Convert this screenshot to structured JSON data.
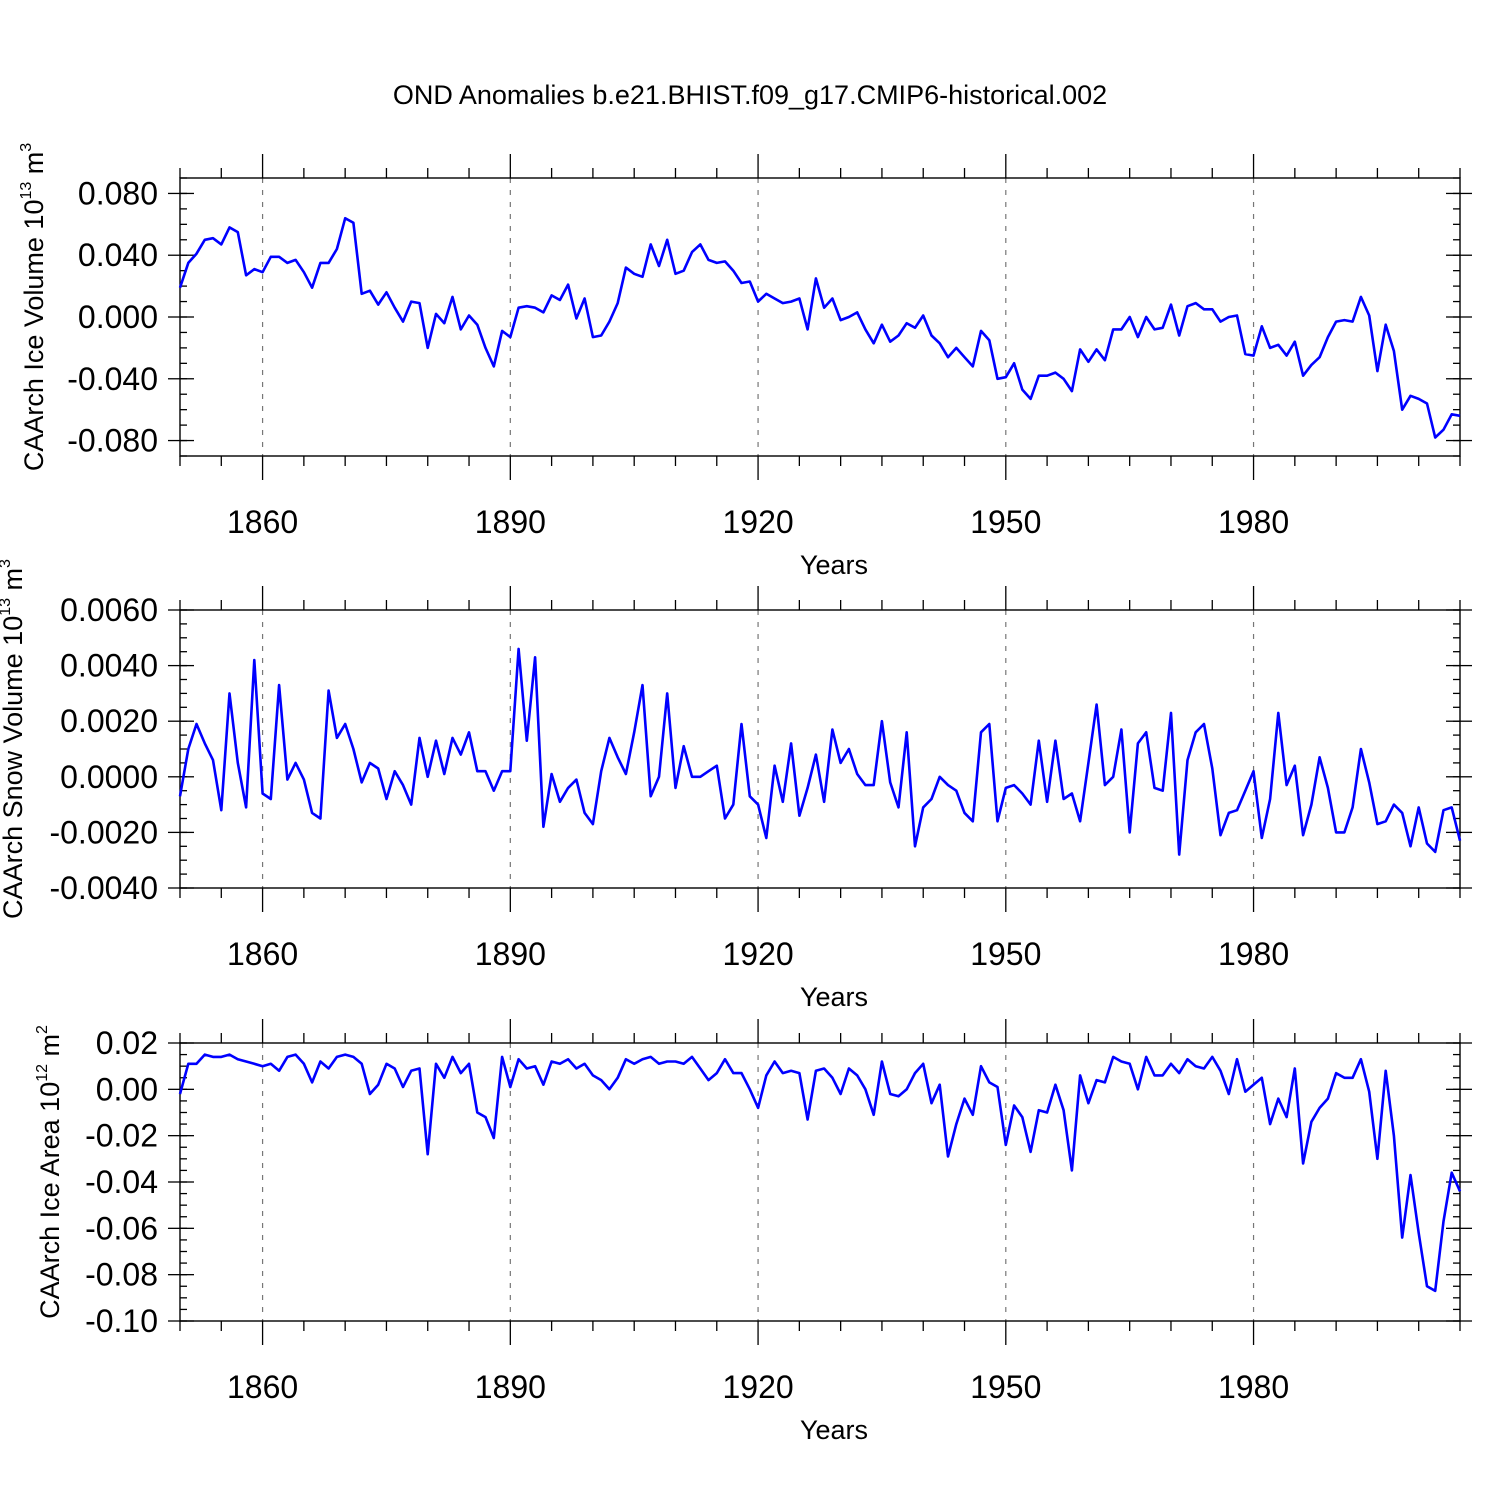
{
  "title": "OND Anomalies b.e21.BHIST.f09_g17.CMIP6-historical.002",
  "chart_data": [
    {
      "type": "line",
      "title": "",
      "xlabel": "Years",
      "ylabel": "CAArch Ice Volume 10",
      "ylabel_exp": "13",
      "ylabel_unit": " m",
      "ylabel_unit_exp": "3",
      "xlim": [
        1850,
        2005
      ],
      "ylim": [
        -0.09,
        0.09
      ],
      "xticks": [
        1860,
        1890,
        1920,
        1950,
        1980
      ],
      "xtick_labels": [
        "1860",
        "1890",
        "1920",
        "1950",
        "1980"
      ],
      "yticks": [
        -0.08,
        -0.04,
        0.0,
        0.04,
        0.08
      ],
      "ytick_labels": [
        "-0.080",
        "-0.040",
        "0.000",
        "0.040",
        "0.080"
      ],
      "grid": "dashed vertical at major x ticks",
      "series": [
        {
          "name": "CAArch Ice Volume",
          "color": "#0000ff",
          "x_start": 1850,
          "values": [
            0.019,
            0.035,
            0.041,
            0.05,
            0.051,
            0.047,
            0.058,
            0.055,
            0.027,
            0.031,
            0.029,
            0.039,
            0.039,
            0.035,
            0.037,
            0.029,
            0.019,
            0.035,
            0.035,
            0.044,
            0.064,
            0.061,
            0.015,
            0.017,
            0.008,
            0.016,
            0.006,
            -0.003,
            0.01,
            0.009,
            -0.02,
            0.002,
            -0.004,
            0.013,
            -0.008,
            0.001,
            -0.005,
            -0.02,
            -0.032,
            -0.009,
            -0.013,
            0.006,
            0.007,
            0.006,
            0.003,
            0.014,
            0.011,
            0.021,
            -0.001,
            0.012,
            -0.013,
            -0.012,
            -0.003,
            0.009,
            0.032,
            0.028,
            0.026,
            0.047,
            0.033,
            0.05,
            0.028,
            0.03,
            0.042,
            0.047,
            0.037,
            0.035,
            0.036,
            0.03,
            0.022,
            0.023,
            0.01,
            0.015,
            0.012,
            0.009,
            0.01,
            0.012,
            -0.008,
            0.025,
            0.006,
            0.012,
            -0.002,
            0.0,
            0.003,
            -0.008,
            -0.017,
            -0.005,
            -0.016,
            -0.012,
            -0.004,
            -0.007,
            0.001,
            -0.012,
            -0.017,
            -0.026,
            -0.02,
            -0.026,
            -0.032,
            -0.009,
            -0.015,
            -0.04,
            -0.039,
            -0.03,
            -0.047,
            -0.053,
            -0.038,
            -0.038,
            -0.036,
            -0.04,
            -0.048,
            -0.021,
            -0.029,
            -0.021,
            -0.028,
            -0.008,
            -0.008,
            0.0,
            -0.013,
            0.0,
            -0.008,
            -0.007,
            0.008,
            -0.012,
            0.007,
            0.009,
            0.005,
            0.005,
            -0.003,
            0.0,
            0.001,
            -0.024,
            -0.025,
            -0.006,
            -0.02,
            -0.018,
            -0.025,
            -0.016,
            -0.038,
            -0.031,
            -0.026,
            -0.013,
            -0.003,
            -0.002,
            -0.003,
            0.013,
            0.001,
            -0.035,
            -0.005,
            -0.022,
            -0.06,
            -0.051,
            -0.053,
            -0.056,
            -0.078,
            -0.073,
            -0.063,
            -0.064
          ]
        }
      ]
    },
    {
      "type": "line",
      "title": "",
      "xlabel": "Years",
      "ylabel": "CAArch Snow Volume 10",
      "ylabel_exp": "13",
      "ylabel_unit": " m",
      "ylabel_unit_exp": "3",
      "xlim": [
        1850,
        2005
      ],
      "ylim": [
        -0.004,
        0.006
      ],
      "xticks": [
        1860,
        1890,
        1920,
        1950,
        1980
      ],
      "xtick_labels": [
        "1860",
        "1890",
        "1920",
        "1950",
        "1980"
      ],
      "yticks": [
        -0.004,
        -0.002,
        0.0,
        0.002,
        0.004,
        0.006
      ],
      "ytick_labels": [
        "-0.0040",
        "-0.0020",
        "0.0000",
        "0.0020",
        "0.0040",
        "0.0060"
      ],
      "grid": "dashed vertical at major x ticks",
      "series": [
        {
          "name": "CAArch Snow Volume",
          "color": "#0000ff",
          "x_start": 1850,
          "values": [
            -0.0007,
            0.001,
            0.0019,
            0.0012,
            0.0006,
            -0.0012,
            0.003,
            0.0005,
            -0.0011,
            0.0042,
            -0.0006,
            -0.0008,
            0.0033,
            -0.0001,
            0.0005,
            -0.0001,
            -0.0013,
            -0.0015,
            0.0031,
            0.0014,
            0.0019,
            0.001,
            -0.0002,
            0.0005,
            0.0003,
            -0.0008,
            0.0002,
            -0.0003,
            -0.001,
            0.0014,
            0.0,
            0.0013,
            0.0001,
            0.0014,
            0.0008,
            0.0016,
            0.0002,
            0.0002,
            -0.0005,
            0.0002,
            0.0002,
            0.0046,
            0.0013,
            0.0043,
            -0.0018,
            0.0001,
            -0.0009,
            -0.0004,
            -0.0001,
            -0.0013,
            -0.0017,
            0.0002,
            0.0014,
            0.0007,
            0.0001,
            0.0016,
            0.0033,
            -0.0007,
            0.0,
            0.003,
            -0.0004,
            0.0011,
            0.0,
            0.0,
            0.0002,
            0.0004,
            -0.0015,
            -0.001,
            0.0019,
            -0.0007,
            -0.001,
            -0.0022,
            0.0004,
            -0.0009,
            0.0012,
            -0.0014,
            -0.0004,
            0.0008,
            -0.0009,
            0.0017,
            0.0005,
            0.001,
            0.0001,
            -0.0003,
            -0.0003,
            0.002,
            -0.0002,
            -0.0011,
            0.0016,
            -0.0025,
            -0.0011,
            -0.0008,
            0.0,
            -0.0003,
            -0.0005,
            -0.0013,
            -0.0016,
            0.0016,
            0.0019,
            -0.0016,
            -0.0004,
            -0.0003,
            -0.0006,
            -0.001,
            0.0013,
            -0.0009,
            0.0013,
            -0.0008,
            -0.0006,
            -0.0016,
            0.0005,
            0.0026,
            -0.0003,
            0.0,
            0.0017,
            -0.002,
            0.0012,
            0.0016,
            -0.0004,
            -0.0005,
            0.0023,
            -0.0028,
            0.0006,
            0.0016,
            0.0019,
            0.0003,
            -0.0021,
            -0.0013,
            -0.0012,
            -0.0005,
            0.0002,
            -0.0022,
            -0.0008,
            0.0023,
            -0.0003,
            0.0004,
            -0.0021,
            -0.001,
            0.0007,
            -0.0004,
            -0.002,
            -0.002,
            -0.0011,
            0.001,
            -0.0002,
            -0.0017,
            -0.0016,
            -0.001,
            -0.0013,
            -0.0025,
            -0.0011,
            -0.0024,
            -0.0027,
            -0.0012,
            -0.0011,
            -0.0023
          ]
        }
      ]
    },
    {
      "type": "line",
      "title": "",
      "xlabel": "Years",
      "ylabel": "CAArch Ice Area 10",
      "ylabel_exp": "12",
      "ylabel_unit": " m",
      "ylabel_unit_exp": "2",
      "xlim": [
        1850,
        2005
      ],
      "ylim": [
        -0.1,
        0.02
      ],
      "xticks": [
        1860,
        1890,
        1920,
        1950,
        1980
      ],
      "xtick_labels": [
        "1860",
        "1890",
        "1920",
        "1950",
        "1980"
      ],
      "yticks": [
        -0.1,
        -0.08,
        -0.06,
        -0.04,
        -0.02,
        0.0,
        0.02
      ],
      "ytick_labels": [
        "-0.10",
        "-0.08",
        "-0.06",
        "-0.04",
        "-0.02",
        "0.00",
        "0.02"
      ],
      "grid": "dashed vertical at major x ticks",
      "series": [
        {
          "name": "CAArch Ice Area",
          "color": "#0000ff",
          "x_start": 1850,
          "values": [
            -0.002,
            0.011,
            0.011,
            0.015,
            0.014,
            0.014,
            0.015,
            0.013,
            0.012,
            0.011,
            0.01,
            0.011,
            0.008,
            0.014,
            0.015,
            0.011,
            0.003,
            0.012,
            0.009,
            0.014,
            0.015,
            0.014,
            0.011,
            -0.002,
            0.002,
            0.011,
            0.009,
            0.001,
            0.008,
            0.009,
            -0.028,
            0.011,
            0.005,
            0.014,
            0.007,
            0.011,
            -0.01,
            -0.012,
            -0.021,
            0.014,
            0.001,
            0.013,
            0.009,
            0.01,
            0.002,
            0.012,
            0.011,
            0.013,
            0.009,
            0.011,
            0.006,
            0.004,
            0.0,
            0.005,
            0.013,
            0.011,
            0.013,
            0.014,
            0.011,
            0.012,
            0.012,
            0.011,
            0.014,
            0.009,
            0.004,
            0.007,
            0.013,
            0.007,
            0.007,
            0.0,
            -0.008,
            0.006,
            0.012,
            0.007,
            0.008,
            0.007,
            -0.013,
            0.008,
            0.009,
            0.005,
            -0.002,
            0.009,
            0.006,
            0.0,
            -0.011,
            0.012,
            -0.002,
            -0.003,
            0.0,
            0.007,
            0.011,
            -0.006,
            0.002,
            -0.029,
            -0.015,
            -0.004,
            -0.011,
            0.01,
            0.003,
            0.001,
            -0.024,
            -0.007,
            -0.012,
            -0.027,
            -0.009,
            -0.01,
            0.002,
            -0.009,
            -0.035,
            0.006,
            -0.006,
            0.004,
            0.003,
            0.014,
            0.012,
            0.011,
            0.0,
            0.014,
            0.006,
            0.006,
            0.011,
            0.007,
            0.013,
            0.01,
            0.009,
            0.014,
            0.008,
            -0.002,
            0.013,
            -0.001,
            0.002,
            0.005,
            -0.015,
            -0.004,
            -0.012,
            0.009,
            -0.032,
            -0.014,
            -0.008,
            -0.004,
            0.007,
            0.005,
            0.005,
            0.013,
            -0.001,
            -0.03,
            0.008,
            -0.02,
            -0.064,
            -0.037,
            -0.062,
            -0.085,
            -0.087,
            -0.057,
            -0.036,
            -0.044
          ]
        }
      ]
    }
  ]
}
